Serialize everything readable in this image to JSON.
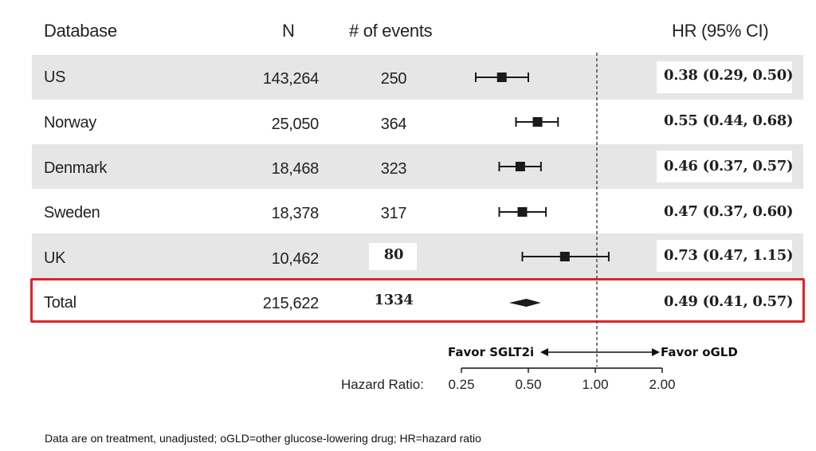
{
  "headers": {
    "database": "Database",
    "n": "N",
    "events": "# of events",
    "hr": "HR (95% CI)"
  },
  "rows": [
    {
      "database": "US",
      "n": "143,264",
      "events": "250",
      "hr_text": "0.38 (0.29, 0.50)"
    },
    {
      "database": "Norway",
      "n": "25,050",
      "events": "364",
      "hr_text": "0.55 (0.44, 0.68)"
    },
    {
      "database": "Denmark",
      "n": "18,468",
      "events": "323",
      "hr_text": "0.46 (0.37, 0.57)"
    },
    {
      "database": "Sweden",
      "n": "18,378",
      "events": "317",
      "hr_text": "0.47 (0.37, 0.60)"
    },
    {
      "database": "UK",
      "n": "10,462",
      "events": "80",
      "hr_text": "0.73 (0.47, 1.15)"
    }
  ],
  "total": {
    "database": "Total",
    "n": "215,622",
    "events": "1334",
    "hr_text": "0.49 (0.41, 0.57)"
  },
  "axis": {
    "label": "Hazard Ratio:",
    "favor_left": "Favor SGLT2i",
    "favor_right": "Favor oGLD"
  },
  "footnote": "Data are on treatment, unadjusted; oGLD=other glucose-lowering drug; HR=hazard ratio",
  "colors": {
    "row_shade": "#e6e6e6",
    "highlight": "#d9262b",
    "marker": "#1a1a1a"
  },
  "chart_data": {
    "type": "forest",
    "x_scale": "log",
    "xlim": [
      0.25,
      2.0
    ],
    "x_ticks": [
      0.25,
      0.5,
      1.0,
      2.0
    ],
    "x_tick_labels": [
      "0.25",
      "0.50",
      "1.00",
      "2.00"
    ],
    "reference_line": 1.0,
    "series": [
      {
        "name": "US",
        "hr": 0.38,
        "lower": 0.29,
        "upper": 0.5
      },
      {
        "name": "Norway",
        "hr": 0.55,
        "lower": 0.44,
        "upper": 0.68
      },
      {
        "name": "Denmark",
        "hr": 0.46,
        "lower": 0.37,
        "upper": 0.57
      },
      {
        "name": "Sweden",
        "hr": 0.47,
        "lower": 0.37,
        "upper": 0.6
      },
      {
        "name": "UK",
        "hr": 0.73,
        "lower": 0.47,
        "upper": 1.15
      }
    ],
    "pooled": {
      "name": "Total",
      "hr": 0.49,
      "lower": 0.41,
      "upper": 0.57
    }
  }
}
